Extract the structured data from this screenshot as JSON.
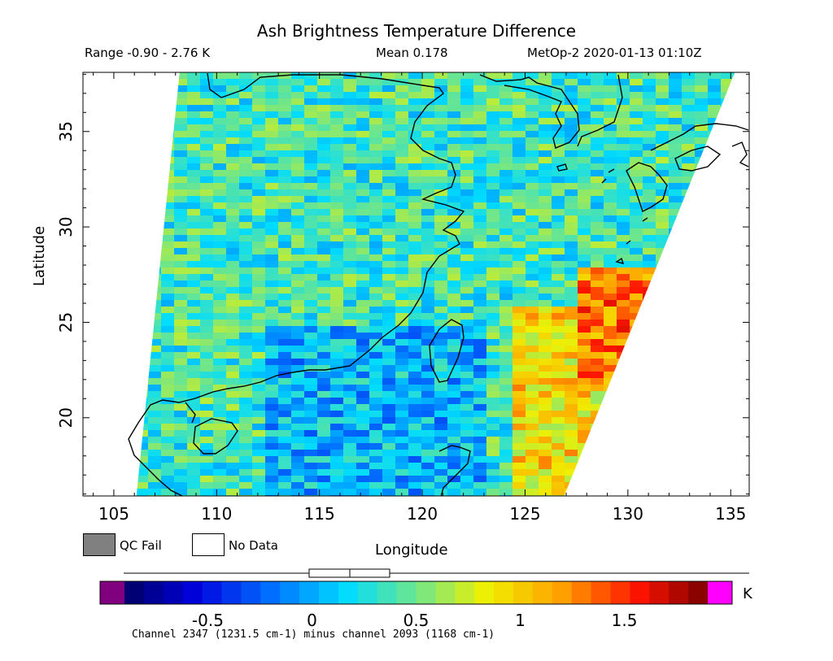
{
  "header": {
    "title": "Ash Brightness Temperature Difference",
    "range": "Range -0.90 - 2.76 K",
    "mean": "Mean 0.178",
    "satellite": "MetOp-2 2020-01-13 01:10Z"
  },
  "map": {
    "xlabel": "Longitude",
    "ylabel": "Latitude",
    "xlim": [
      103.5,
      135.9
    ],
    "ylim": [
      15.9,
      38.1
    ],
    "xticks": [
      105,
      110,
      115,
      120,
      125,
      130,
      135
    ],
    "yticks": [
      20,
      25,
      30,
      35
    ],
    "colors": {
      "land_outline": "#000000",
      "no_data": "#ffffff",
      "qc_fail": "#808080"
    },
    "swath": {
      "left_edge_lon_at_top": 108.2,
      "left_edge_lon_at_bottom": 106.1,
      "right_edge_lon_at_top": 135.2,
      "right_edge_lon_at_bottom": 126.9
    }
  },
  "legend": {
    "qc_fail_label": "QC Fail",
    "no_data_label": "No Data"
  },
  "colorbar": {
    "ticks": [
      "-0.5",
      "0",
      "0.5",
      "1",
      "1.5"
    ],
    "tick_values": [
      -0.5,
      0,
      0.5,
      1,
      1.5
    ],
    "vmin": -0.9,
    "vmax": 1.9,
    "unit": "K",
    "under_color": "#800080",
    "over_color": "#ff00ff",
    "footnote": "Channel 2347 (1231.5 cm-1) minus channel 2093 (1168 cm-1)"
  }
}
